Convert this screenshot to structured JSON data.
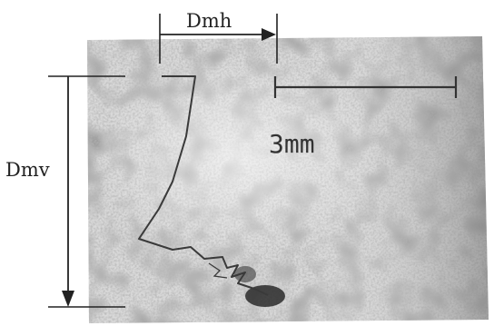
{
  "annotations": {
    "horizontal_label": "Dmh",
    "vertical_label": "Dmv",
    "scale_label": "3mm"
  }
}
